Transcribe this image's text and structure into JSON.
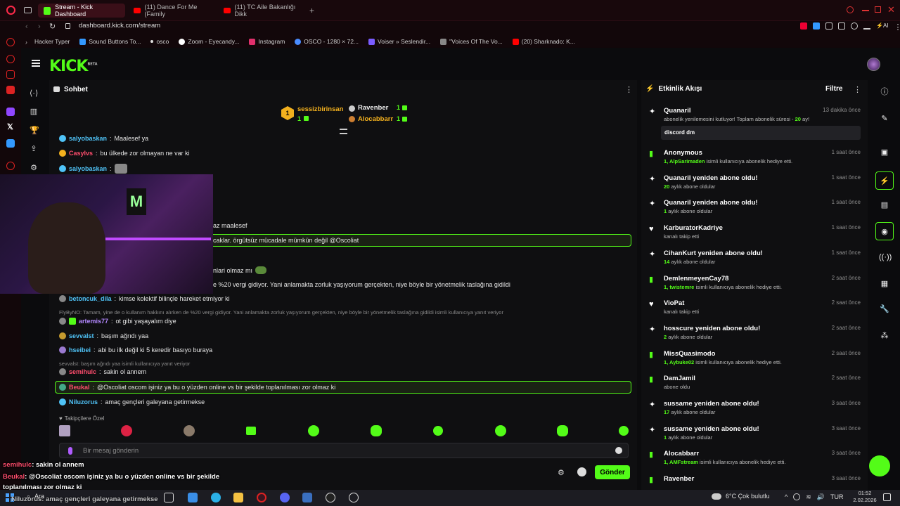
{
  "browser": {
    "tabs": [
      {
        "label": "Stream - Kick Dashboard",
        "active": true,
        "color": "#53fc18"
      },
      {
        "label": "(11) Dance For Me (Family",
        "active": false,
        "color": "#ff0000"
      },
      {
        "label": "(11) TC Aile Bakanlığı Dikk",
        "active": false,
        "color": "#ff0000"
      }
    ],
    "url": "dashboard.kick.com/stream",
    "bookmarks": [
      "Hacker Typer",
      "Sound Buttons To...",
      "osco",
      "Zoom - Eyecandy...",
      "Instagram",
      "OSCO - 1280 × 72...",
      "Voiser » Seslendir...",
      "\"Voices Of The Vo...",
      "(20) Sharknado: K..."
    ]
  },
  "kick": {
    "logo": "KICK",
    "logo_tag": "BETA"
  },
  "chat": {
    "title": "Sohbet",
    "top_supporters": [
      {
        "name": "sessizbirinsan",
        "count": "1",
        "rank": "1"
      },
      {
        "name": "Ravenber",
        "count": "1"
      },
      {
        "name": "Alocabbarr",
        "count": "1"
      }
    ],
    "messages": [
      {
        "user": "salyobaskan",
        "text": "Maalesef ya",
        "color": "#4fc3f7"
      },
      {
        "user": "Casylvs",
        "text": "bu ülkede zor olmayan ne var ki",
        "color": "#ff4d6d"
      },
      {
        "user": "salyobaskan",
        "text": "",
        "color": "#4fc3f7"
      },
      {
        "user": "",
        "text": "az maalesef",
        "color": "#fff"
      },
      {
        "user": "",
        "text": "caklar. örgütsüz mücadale mümkün değil @Oscoliat",
        "color": "#fff"
      },
      {
        "user": "",
        "text": "nlari olmaz mı",
        "color": "#fff"
      },
      {
        "user": "",
        "text": "e %20 vergi gidiyor. Yani anlamakta zorluk yaşıyorum gerçekten, niye böyle bir yönetmelik taslağına gidildi",
        "color": "#fff"
      },
      {
        "user": "betoncuk_dila",
        "text": "kimse kolektif bilinçle hareket etmiyor ki",
        "color": "#4fc3f7"
      },
      {
        "user": "artemis77",
        "text": "ot gibi yaşayalım diye",
        "color": "#b388ff"
      },
      {
        "user": "sevvalst",
        "text": "başım ağrıdı yaa",
        "color": "#4fc3f7"
      },
      {
        "user": "hseibei",
        "text": "abi bu ilk değil ki 5 keredir basıyo buraya",
        "color": "#4fc3f7"
      },
      {
        "user": "semihulc",
        "text": "sakin ol annem",
        "color": "#ff4d6d"
      },
      {
        "user": "Beukal",
        "text": "@Oscoliat oscom işiniz ya bu o yüzden online vs bir şekilde toplanılması zor olmaz ki",
        "color": "#ff4d6d"
      },
      {
        "user": "Niluzorus",
        "text": "amaç gençleri galeyana getirmekse",
        "color": "#4fc3f7"
      }
    ],
    "reply1": "FlyByNO: Tamam, yine de o kullanım hakkını alırken de %20 vergi gidiyor. Yani anlamakta zorluk yaşıyorum gerçekten, niye böyle bir yönetmelik taslağına gidildi isimli kullanıcıya yanıt veriyor",
    "reply2": "sevvalst: başım ağrıdı yaa isimli kullanıcıya yanıt veriyor",
    "emote_section": "Takipçilere Özel",
    "input_placeholder": "Bir mesaj gönderin",
    "send_label": "Gönder"
  },
  "activity": {
    "title": "Etkinlik Akışı",
    "filter_label": "Filtre",
    "items": [
      {
        "name": "Quanaril",
        "time": "13 dakika önce",
        "sub_pre": "abonelik yenilemesini kutluyor! Toplam abonelik süresi - ",
        "sub_hl": "20",
        "sub_post": " ay!",
        "note": "discord dm",
        "icon": "✦"
      },
      {
        "name": "Anonymous",
        "time": "1 saat önce",
        "sub_hl": "1, AlpSarimaden",
        "sub_post": " isimli kullanıcıya abonelik hediye etti.",
        "icon": "▮"
      },
      {
        "name": "Quanaril yeniden abone oldu!",
        "time": "1 saat önce",
        "sub_hl": "20",
        "sub_post": " aylık abone oldular",
        "icon": "✦"
      },
      {
        "name": "Quanaril yeniden abone oldu!",
        "time": "1 saat önce",
        "sub_hl": "1",
        "sub_post": " aylık abone oldular",
        "icon": "✦"
      },
      {
        "name": "KarburatorKadriye",
        "time": "1 saat önce",
        "sub_hl": "",
        "sub_post": "kanalı takip etti",
        "icon": "♥"
      },
      {
        "name": "CihanKurt yeniden abone oldu!",
        "time": "1 saat önce",
        "sub_hl": "14",
        "sub_post": " aylık abone oldular",
        "icon": "✦"
      },
      {
        "name": "DemlenmeyenCay78",
        "time": "2 saat önce",
        "sub_hl": "1, twistemre",
        "sub_post": " isimli kullanıcıya abonelik hediye etti.",
        "icon": "▮"
      },
      {
        "name": "VioPat",
        "time": "2 saat önce",
        "sub_hl": "",
        "sub_post": "kanalı takip etti",
        "icon": "♥"
      },
      {
        "name": "hosscure yeniden abone oldu!",
        "time": "2 saat önce",
        "sub_hl": "2",
        "sub_post": " aylık abone oldular",
        "icon": "✦"
      },
      {
        "name": "MissQuasimodo",
        "time": "2 saat önce",
        "sub_hl": "1, Aybuke02",
        "sub_post": " isimli kullanıcıya abonelik hediye etti.",
        "icon": "▮"
      },
      {
        "name": "DamJamil",
        "time": "2 saat önce",
        "sub_hl": "",
        "sub_post": "abone oldu",
        "icon": "▮"
      },
      {
        "name": "sussame yeniden abone oldu!",
        "time": "3 saat önce",
        "sub_hl": "17",
        "sub_post": " aylık abone oldular",
        "icon": "✦"
      },
      {
        "name": "sussame yeniden abone oldu!",
        "time": "3 saat önce",
        "sub_hl": "1",
        "sub_post": " aylık abone oldular",
        "icon": "✦"
      },
      {
        "name": "Alocabbarr",
        "time": "3 saat önce",
        "sub_hl": "1, AMFstream",
        "sub_post": " isimli kullanıcıya abonelik hediye etti.",
        "icon": "▮"
      },
      {
        "name": "Ravenber",
        "time": "3 saat önce",
        "sub_hl": "",
        "sub_post": "",
        "icon": "▮"
      }
    ]
  },
  "overlay": {
    "line1_user": "semihulc",
    "line1_text": ": sakin ol annem",
    "line2_user": "Beukal",
    "line2_text": ": @Oscoliat oscom işiniz ya bu o yüzden online vs bir şekilde",
    "line3_text": "toplanılması zor olmaz ki",
    "line4_text": "Niluzorus: amaç gençleri galeyana getirmekse"
  },
  "taskbar": {
    "search": "Ara",
    "weather": "6°C  Çok bulutlu",
    "lang": "TUR",
    "time": "01:52",
    "date": "2.02.2026"
  }
}
